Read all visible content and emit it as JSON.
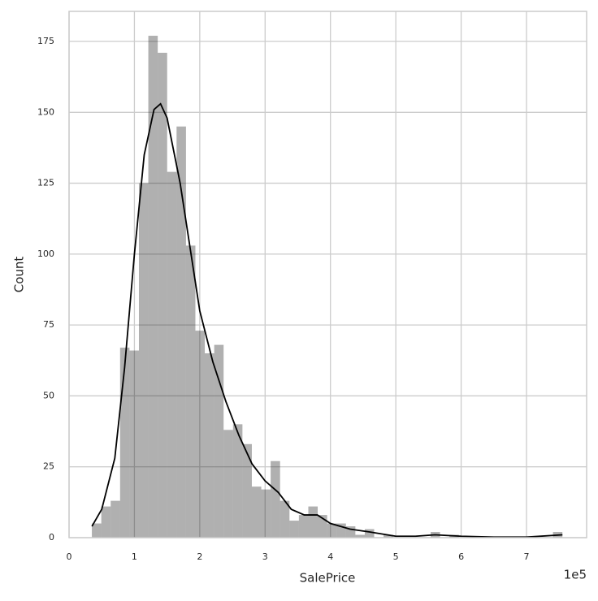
{
  "chart_data": {
    "type": "histogram",
    "xlabel": "SalePrice",
    "ylabel": "Count",
    "x_offset_label": "1e5",
    "bins": [
      0.349,
      0.493,
      0.637,
      0.781,
      0.925,
      1.069,
      1.213,
      1.357,
      1.501,
      1.645,
      1.789,
      1.933,
      2.077,
      2.221,
      2.365,
      2.509,
      2.653,
      2.797,
      2.941,
      3.085,
      3.229,
      3.373,
      3.517,
      3.661,
      3.805,
      3.949,
      4.093,
      4.237,
      4.381,
      4.525,
      4.669,
      4.813,
      4.957,
      5.101,
      5.245,
      5.389,
      5.533,
      5.677,
      5.821,
      5.965,
      6.109,
      6.253,
      6.397,
      6.541,
      6.685,
      6.829,
      6.973,
      7.117,
      7.261,
      7.405,
      7.549
    ],
    "counts": [
      5,
      11,
      13,
      67,
      66,
      125,
      177,
      171,
      129,
      145,
      103,
      73,
      65,
      68,
      38,
      40,
      33,
      18,
      17,
      27,
      13,
      6,
      8,
      11,
      8,
      5,
      5,
      4,
      1,
      3,
      0,
      1,
      0,
      0,
      0,
      0,
      2,
      0,
      1,
      0,
      0,
      0,
      0,
      0,
      0,
      0,
      0,
      0,
      0,
      2
    ],
    "color": "#b0b0b0",
    "line": {
      "x": [
        0.35,
        0.5,
        0.7,
        0.85,
        1.0,
        1.15,
        1.3,
        1.4,
        1.5,
        1.7,
        1.9,
        2.0,
        2.2,
        2.4,
        2.6,
        2.8,
        3.0,
        3.2,
        3.4,
        3.6,
        3.8,
        4.0,
        4.3,
        4.6,
        5.0,
        5.3,
        5.6,
        6.0,
        6.5,
        7.0,
        7.55
      ],
      "y": [
        4,
        10,
        28,
        60,
        100,
        135,
        151,
        153,
        148,
        125,
        95,
        80,
        62,
        48,
        36,
        26,
        20,
        16,
        10,
        8,
        8,
        5,
        3,
        2,
        0.5,
        0.5,
        1,
        0.5,
        0.2,
        0.2,
        1
      ],
      "color": "#000000"
    },
    "xlim": [
      0,
      7.92
    ],
    "ylim": [
      0,
      185.6
    ],
    "xticks": [
      0,
      1,
      2,
      3,
      4,
      5,
      6,
      7
    ],
    "yticks": [
      0,
      25,
      50,
      75,
      100,
      125,
      150,
      175
    ],
    "grid": true
  }
}
